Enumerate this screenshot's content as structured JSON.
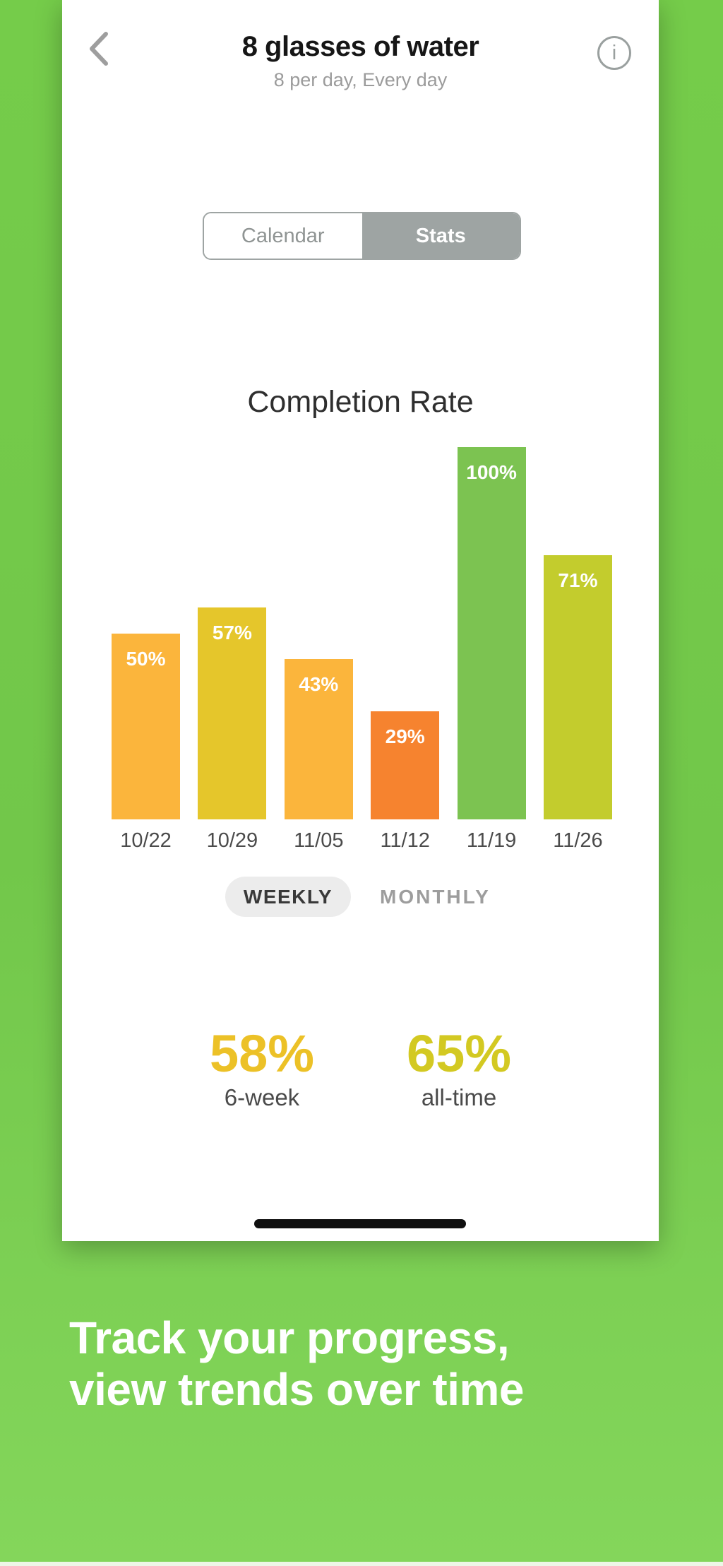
{
  "header": {
    "title": "8 glasses of water",
    "subtitle": "8 per day, Every day",
    "info_glyph": "i"
  },
  "view_tabs": {
    "calendar_label": "Calendar",
    "stats_label": "Stats",
    "selected": "Stats",
    "selected_bg": "#9ea4a3"
  },
  "chart_data": {
    "type": "bar",
    "title": "Completion Rate",
    "categories": [
      "10/22",
      "10/29",
      "11/05",
      "11/12",
      "11/19",
      "11/26"
    ],
    "values": [
      50,
      57,
      43,
      29,
      100,
      71
    ],
    "unit": "%",
    "bar_colors": [
      "#fbb53c",
      "#e5c62b",
      "#fbb53c",
      "#f6832f",
      "#7cc351",
      "#c3cc2d"
    ],
    "ylim": [
      0,
      100
    ],
    "value_labels_inside_bars": true,
    "grid": false,
    "legend": false
  },
  "period_toggle": {
    "options": [
      "WEEKLY",
      "MONTHLY"
    ],
    "selected": "WEEKLY"
  },
  "summary_stats": [
    {
      "value": "58%",
      "label": "6-week",
      "color": "#ecc127"
    },
    {
      "value": "65%",
      "label": "all-time",
      "color": "#d3c922"
    }
  ],
  "footer": {
    "headline_line1": "Track your progress,",
    "headline_line2": "view trends over time"
  },
  "colors": {
    "background_top": "#75cc4a",
    "background_bottom": "#84d65b",
    "card": "#ffffff",
    "home_indicator": "#0f0f0f"
  }
}
